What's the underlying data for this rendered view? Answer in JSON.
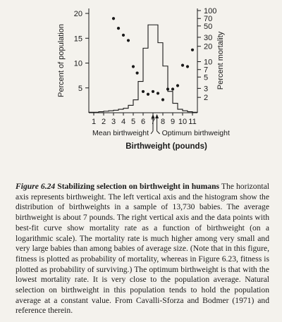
{
  "chart_data": {
    "type": "bar",
    "xlabel": "Birthweight",
    "xunit": "(pounds)",
    "x_ticks": [
      1,
      2,
      3,
      4,
      5,
      6,
      7,
      8,
      9,
      10,
      11
    ],
    "xlim": [
      0.5,
      11.5
    ],
    "left_axis": {
      "label": "Percent of population",
      "ticks": [
        5,
        10,
        15,
        20
      ],
      "ylim": [
        0,
        21
      ]
    },
    "right_axis": {
      "label": "Percent mortality",
      "scale": "log",
      "ticks": [
        2,
        3,
        5,
        7,
        10,
        20,
        30,
        50,
        70,
        100
      ],
      "ylim": [
        1,
        110
      ]
    },
    "histogram": {
      "name": "Distribution of birthweights",
      "bin_width": 0.5,
      "bin_starts": [
        0.5,
        1.0,
        1.5,
        2.0,
        2.5,
        3.0,
        3.5,
        4.0,
        4.5,
        5.0,
        5.5,
        6.0,
        6.5,
        7.0,
        7.5,
        8.0,
        8.5,
        9.0,
        9.5,
        10.0,
        10.5,
        11.0
      ],
      "values": [
        0.1,
        0.1,
        0.2,
        0.3,
        0.4,
        0.5,
        0.7,
        0.9,
        1.5,
        2.6,
        6.3,
        13.0,
        17.7,
        17.7,
        14.1,
        9.4,
        4.3,
        1.9,
        0.7,
        0.4,
        0.2,
        0.1
      ]
    },
    "mortality_points": {
      "name": "Mortality rate",
      "points": [
        {
          "x": 3.0,
          "y": 70
        },
        {
          "x": 3.5,
          "y": 45
        },
        {
          "x": 4.0,
          "y": 33
        },
        {
          "x": 4.5,
          "y": 26
        },
        {
          "x": 5.0,
          "y": 8
        },
        {
          "x": 5.4,
          "y": 6
        },
        {
          "x": 6.0,
          "y": 2.6
        },
        {
          "x": 6.5,
          "y": 2.3
        },
        {
          "x": 7.0,
          "y": 2.6
        },
        {
          "x": 7.5,
          "y": 2.4
        },
        {
          "x": 8.0,
          "y": 1.8
        },
        {
          "x": 8.5,
          "y": 2.9
        },
        {
          "x": 9.0,
          "y": 2.9
        },
        {
          "x": 9.5,
          "y": 3.4
        },
        {
          "x": 10.0,
          "y": 8.5
        },
        {
          "x": 10.5,
          "y": 8
        },
        {
          "x": 11.0,
          "y": 17
        }
      ]
    },
    "annotations": [
      {
        "label": "Mean birthweight",
        "x": 7.0,
        "side": "left"
      },
      {
        "label": "Optimum birthweight",
        "x": 7.4,
        "side": "right"
      }
    ]
  },
  "caption": {
    "figure_label": "Figure 6.24",
    "title": "Stabilizing selection on birthweight in humans",
    "body": "The horizontal axis represents birthweight. The left vertical axis and the histogram show the distribution of birthweights in a sample of 13,730 babies. The average birthweight is about 7 pounds. The right vertical axis and the data points with best-fit curve show mortality rate as a function of birthweight (on a logarithmic scale). The mortality rate is much higher among very small and very large babies than among babies of average size. (Note that in this figure, fitness is plotted as probability of mortality, whereas in Figure 6.23, fitness is plotted as probability of surviving.) The optimum birthweight is that with the lowest mortality rate. It is very close to the population average. Natural selection on birthweight in this population tends to hold the population average at a constant value. From Cavalli-Sforza and Bodmer (1971) and reference therein."
  },
  "colors": {
    "ink": "#1a1a1a",
    "paper": "#f4f2ed"
  }
}
